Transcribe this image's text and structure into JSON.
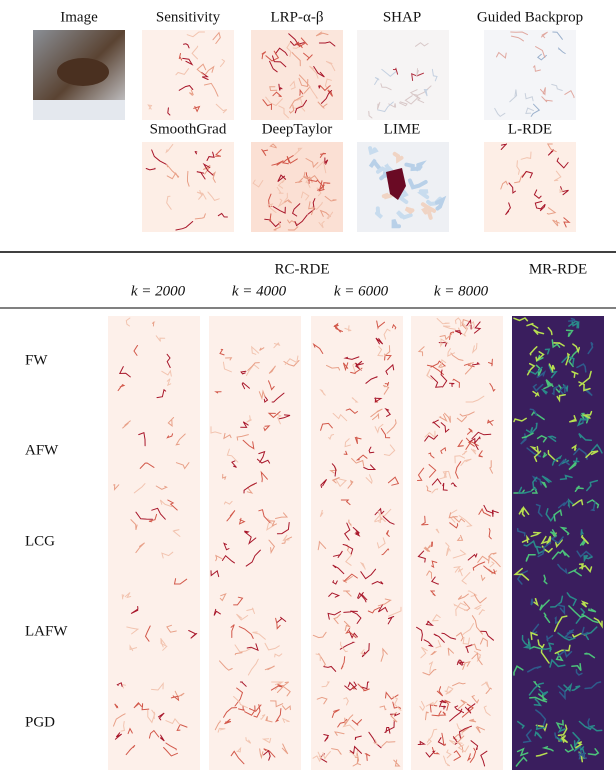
{
  "top_panels": {
    "row1": [
      "Image",
      "Sensitivity",
      "LRP-α-β",
      "SHAP",
      "Guided Backprop"
    ],
    "row2": [
      "SmoothGrad",
      "DeepTaylor",
      "LIME",
      "L-RDE"
    ]
  },
  "table": {
    "group_headers": [
      "RC-RDE",
      "MR-RDE"
    ],
    "column_headers": [
      "k = 2000",
      "k = 4000",
      "k = 6000",
      "k = 8000"
    ],
    "row_labels": [
      "FW",
      "AFW",
      "LCG",
      "LAFW",
      "PGD"
    ]
  }
}
